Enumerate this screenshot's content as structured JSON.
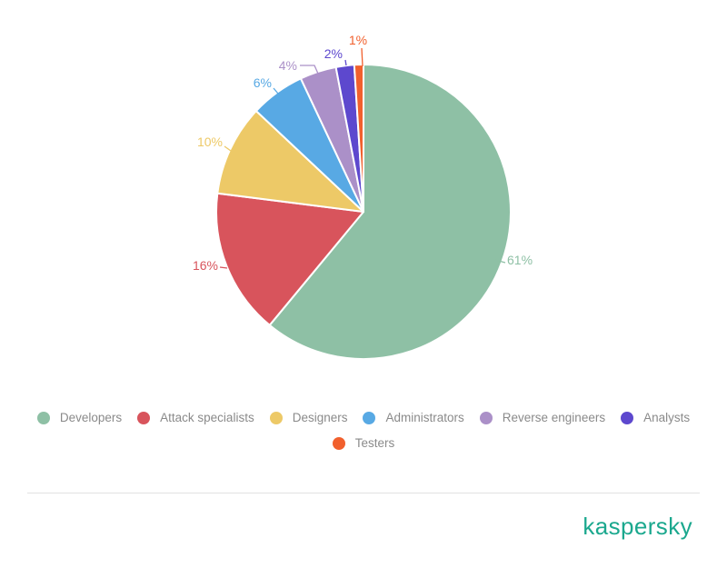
{
  "chart_data": {
    "type": "pie",
    "value_suffix": "%",
    "start_angle_deg": 0,
    "direction": "clockwise",
    "legend_position": "bottom",
    "slices": [
      {
        "label": "Developers",
        "value": 61,
        "color": "#8ec0a5"
      },
      {
        "label": "Attack specialists",
        "value": 16,
        "color": "#d8545c"
      },
      {
        "label": "Designers",
        "value": 10,
        "color": "#edc967"
      },
      {
        "label": "Administrators",
        "value": 6,
        "color": "#58a9e4"
      },
      {
        "label": "Reverse engineers",
        "value": 4,
        "color": "#ab90c8"
      },
      {
        "label": "Analysts",
        "value": 2,
        "color": "#5d48ce"
      },
      {
        "label": "Testers",
        "value": 1,
        "color": "#f1602d"
      }
    ]
  },
  "legend": {
    "row_split": 6
  },
  "footer": {
    "brand": "kaspersky",
    "brand_color": "#1ba88e"
  }
}
